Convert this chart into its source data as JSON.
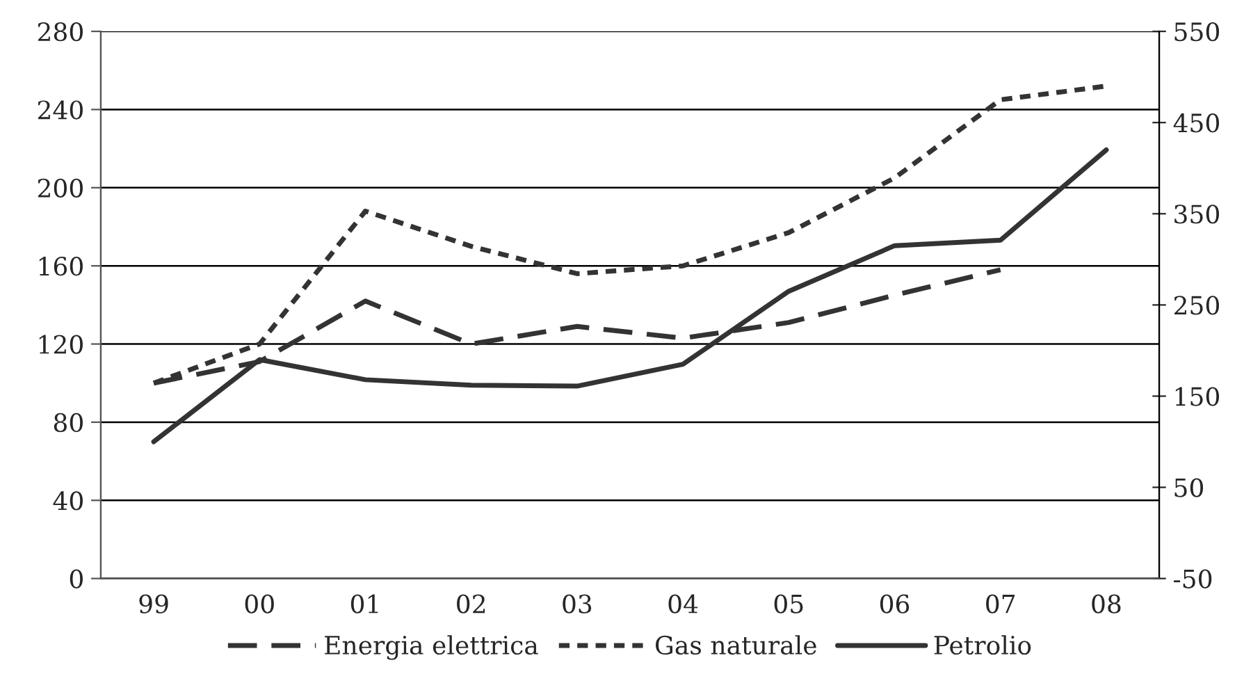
{
  "chart_data": {
    "type": "line",
    "categories": [
      "99",
      "00",
      "01",
      "02",
      "03",
      "04",
      "05",
      "06",
      "07",
      "08"
    ],
    "series": [
      {
        "name": "Energia elettrica",
        "color": "#333333",
        "line_style": "dashed",
        "values": [
          100,
          111,
          142,
          120,
          129,
          123,
          131,
          145,
          158,
          null
        ]
      },
      {
        "name": "Gas naturale",
        "color": "#333333",
        "line_style": "dotted",
        "values": [
          100,
          120,
          188,
          170,
          156,
          160,
          177,
          205,
          245,
          252
        ]
      },
      {
        "name": "Petrolio",
        "color": "#333333",
        "line_style": "solid",
        "axis": "y2",
        "values": [
          100,
          190,
          168,
          162,
          161,
          185,
          265,
          315,
          321,
          420
        ]
      }
    ],
    "ylim": [
      0,
      280
    ],
    "yticks": [
      0,
      40,
      80,
      120,
      160,
      200,
      240,
      280
    ],
    "y2lim": [
      -50,
      550
    ],
    "y2ticks": [
      -50,
      50,
      150,
      250,
      350,
      450,
      550
    ],
    "grid": "y",
    "legend": "bottom",
    "marker": "none"
  }
}
